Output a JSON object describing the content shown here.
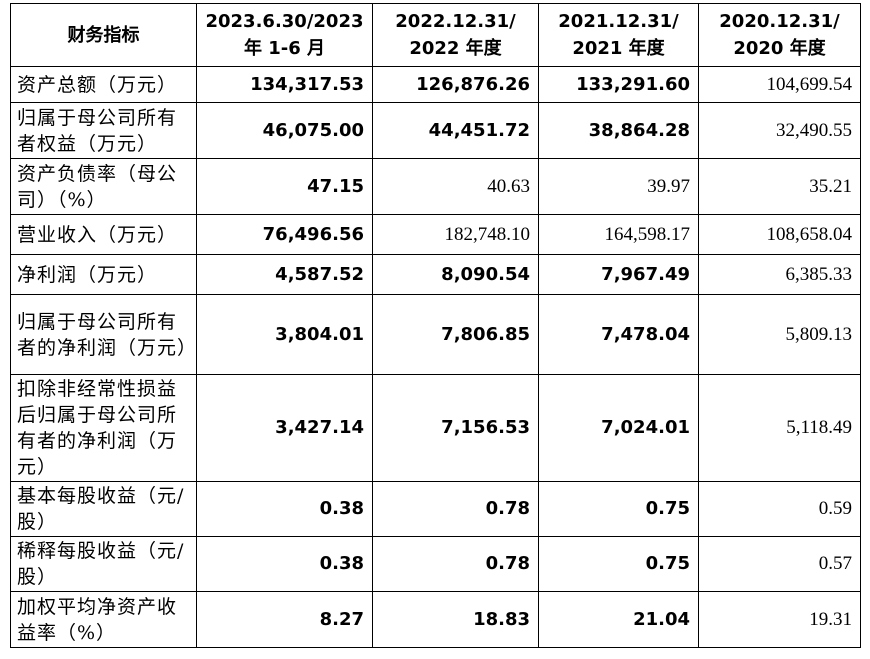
{
  "table": {
    "headers": [
      "财务指标",
      "2023.6.30/2023 年 1-6 月",
      "2022.12.31/ 2022 年度",
      "2021.12.31/ 2021 年度",
      "2020.12.31/ 2020 年度"
    ],
    "rows": [
      {
        "label": "资产总额（万元）",
        "values": [
          "134,317.53",
          "126,876.26",
          "133,291.60",
          "104,699.54"
        ],
        "bold": [
          true,
          true,
          true,
          false
        ]
      },
      {
        "label": "归属于母公司所有者权益（万元）",
        "values": [
          "46,075.00",
          "44,451.72",
          "38,864.28",
          "32,490.55"
        ],
        "bold": [
          true,
          true,
          true,
          false
        ]
      },
      {
        "label": "资产负债率（母公司）（%）",
        "values": [
          "47.15",
          "40.63",
          "39.97",
          "35.21"
        ],
        "bold": [
          true,
          false,
          false,
          false
        ]
      },
      {
        "label": "营业收入（万元）",
        "values": [
          "76,496.56",
          "182,748.10",
          "164,598.17",
          "108,658.04"
        ],
        "bold": [
          true,
          false,
          false,
          false
        ]
      },
      {
        "label": "净利润（万元）",
        "values": [
          "4,587.52",
          "8,090.54",
          "7,967.49",
          "6,385.33"
        ],
        "bold": [
          true,
          true,
          true,
          false
        ]
      },
      {
        "label": "归属于母公司所有者的净利润（万元）",
        "values": [
          "3,804.01",
          "7,806.85",
          "7,478.04",
          "5,809.13"
        ],
        "bold": [
          true,
          true,
          true,
          false
        ]
      },
      {
        "label": "扣除非经常性损益后归属于母公司所有者的净利润（万元）",
        "values": [
          "3,427.14",
          "7,156.53",
          "7,024.01",
          "5,118.49"
        ],
        "bold": [
          true,
          true,
          true,
          false
        ]
      },
      {
        "label": "基本每股收益（元/股）",
        "values": [
          "0.38",
          "0.78",
          "0.75",
          "0.59"
        ],
        "bold": [
          true,
          true,
          true,
          false
        ]
      },
      {
        "label": "稀释每股收益（元/股）",
        "values": [
          "0.38",
          "0.78",
          "0.75",
          "0.57"
        ],
        "bold": [
          true,
          true,
          true,
          false
        ]
      },
      {
        "label": "加权平均净资产收益率（%）",
        "values": [
          "8.27",
          "18.83",
          "21.04",
          "19.31"
        ],
        "bold": [
          true,
          true,
          true,
          false
        ]
      }
    ]
  }
}
